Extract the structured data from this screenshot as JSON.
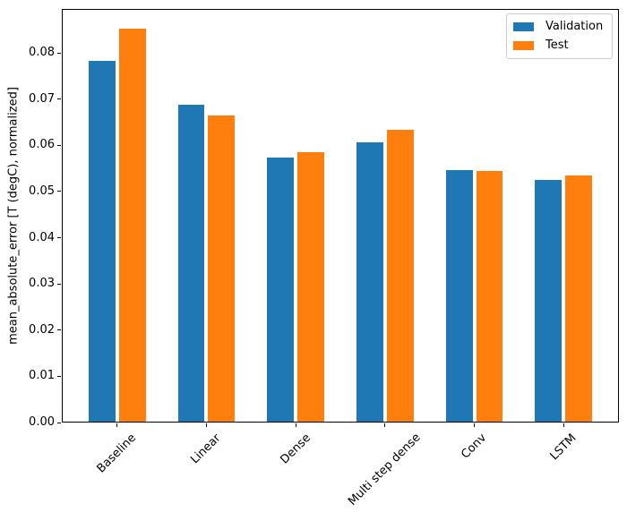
{
  "chart_data": {
    "type": "bar",
    "title": "",
    "xlabel": "",
    "ylabel": "mean_absolute_error [T (degC), normalized]",
    "categories": [
      "Baseline",
      "Linear",
      "Dense",
      "Multi step dense",
      "Conv",
      "LSTM"
    ],
    "series": [
      {
        "name": "Validation",
        "color": "#1f77b4",
        "values": [
          0.0785,
          0.0688,
          0.0574,
          0.0607,
          0.0547,
          0.0526
        ]
      },
      {
        "name": "Test",
        "color": "#ff7f0e",
        "values": [
          0.0855,
          0.0666,
          0.0585,
          0.0635,
          0.0544,
          0.0535
        ]
      }
    ],
    "ylim": [
      0,
      0.0895
    ],
    "xlim": [
      -0.62,
      5.62
    ],
    "yticks": [
      0.0,
      0.01,
      0.02,
      0.03,
      0.04,
      0.05,
      0.06,
      0.07,
      0.08
    ],
    "ytick_labels": [
      "0.00",
      "0.01",
      "0.02",
      "0.03",
      "0.04",
      "0.05",
      "0.06",
      "0.07",
      "0.08"
    ],
    "bar_width": 0.3,
    "bar_offsets": [
      -0.17,
      0.17
    ],
    "xtick_rotation_deg": 45,
    "grid": false,
    "legend_position": "upper right"
  }
}
